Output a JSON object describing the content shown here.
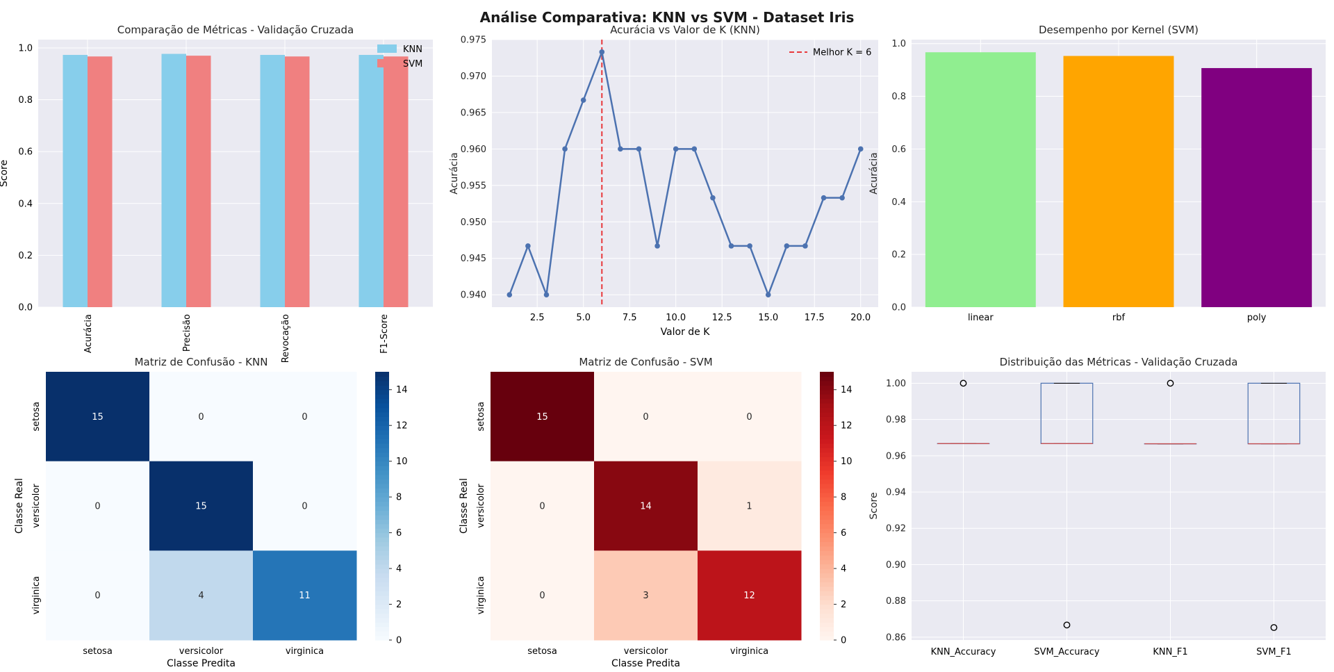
{
  "figure": {
    "title": "Análise Comparativa: KNN vs SVM - Dataset Iris"
  },
  "colors": {
    "knn_bar": "#87CEEB",
    "svm_bar": "#F08080",
    "line": "#4C72B0",
    "best_k_line": "#E8383B",
    "kernel_linear": "#90EE90",
    "kernel_rbf": "#FFA500",
    "kernel_poly": "#800080",
    "box": "#4C72B0",
    "median": "#C44E52",
    "axes_bg": "#EAEAF2"
  },
  "chart_data": [
    {
      "id": "metrics",
      "type": "bar",
      "title": "Comparação de Métricas - Validação Cruzada",
      "xlabel": "",
      "ylabel": "Score",
      "ylim": [
        0,
        1.032
      ],
      "yticks": [
        0.0,
        0.2,
        0.4,
        0.6,
        0.8,
        1.0
      ],
      "categories": [
        "Acurácia",
        "Precisão",
        "Revocação",
        "F1-Score"
      ],
      "series": [
        {
          "name": "KNN",
          "values": [
            0.973,
            0.977,
            0.973,
            0.973
          ]
        },
        {
          "name": "SVM",
          "values": [
            0.967,
            0.97,
            0.967,
            0.967
          ]
        }
      ],
      "legend": "top-right",
      "grid": true
    },
    {
      "id": "k_curve",
      "type": "line",
      "title": "Acurácia vs Valor de K (KNN)",
      "xlabel": "Valor de K",
      "ylabel": "Acurácia",
      "xlim": [
        0.05,
        20.95
      ],
      "ylim": [
        0.9383,
        0.975
      ],
      "xticks": [
        2.5,
        5.0,
        7.5,
        10.0,
        12.5,
        15.0,
        17.5,
        20.0
      ],
      "yticks": [
        0.94,
        0.945,
        0.95,
        0.955,
        0.96,
        0.965,
        0.97,
        0.975
      ],
      "x": [
        1,
        2,
        3,
        4,
        5,
        6,
        7,
        8,
        9,
        10,
        11,
        12,
        13,
        14,
        15,
        16,
        17,
        18,
        19,
        20
      ],
      "y": [
        0.94,
        0.9467,
        0.94,
        0.96,
        0.9667,
        0.9733,
        0.96,
        0.96,
        0.9467,
        0.96,
        0.96,
        0.9533,
        0.9467,
        0.9467,
        0.94,
        0.9467,
        0.9467,
        0.9533,
        0.9533,
        0.96
      ],
      "best_k": 6,
      "legend_label": "Melhor K = 6",
      "legend": "top-right",
      "grid": true
    },
    {
      "id": "kernels",
      "type": "bar",
      "title": "Desempenho por Kernel (SVM)",
      "xlabel": "",
      "ylabel": "Acurácia",
      "ylim": [
        0,
        1.015
      ],
      "yticks": [
        0.0,
        0.2,
        0.4,
        0.6,
        0.8,
        1.0
      ],
      "categories": [
        "linear",
        "rbf",
        "poly"
      ],
      "values": [
        0.967,
        0.953,
        0.907
      ],
      "grid": true
    },
    {
      "id": "cm_knn",
      "type": "heatmap",
      "title": "Matriz de Confusão - KNN",
      "xlabel": "Classe Predita",
      "ylabel": "Classe Real",
      "labels": [
        "setosa",
        "versicolor",
        "virginica"
      ],
      "matrix": [
        [
          15,
          0,
          0
        ],
        [
          0,
          15,
          0
        ],
        [
          0,
          4,
          11
        ]
      ],
      "colormap": "Blues",
      "vmin": 0,
      "vmax": 15,
      "colorbar_ticks": [
        0,
        2,
        4,
        6,
        8,
        10,
        12,
        14
      ]
    },
    {
      "id": "cm_svm",
      "type": "heatmap",
      "title": "Matriz de Confusão - SVM",
      "xlabel": "Classe Predita",
      "ylabel": "Classe Real",
      "labels": [
        "setosa",
        "versicolor",
        "virginica"
      ],
      "matrix": [
        [
          15,
          0,
          0
        ],
        [
          0,
          14,
          1
        ],
        [
          0,
          3,
          12
        ]
      ],
      "colormap": "Reds",
      "vmin": 0,
      "vmax": 15,
      "colorbar_ticks": [
        0,
        2,
        4,
        6,
        8,
        10,
        12,
        14
      ]
    },
    {
      "id": "boxplot",
      "type": "box",
      "title": "Distribuição das Métricas - Validação Cruzada",
      "xlabel": "",
      "ylabel": "Score",
      "ylim": [
        0.8584,
        1.0063
      ],
      "yticks": [
        0.86,
        0.88,
        0.9,
        0.92,
        0.94,
        0.96,
        0.98,
        1.0
      ],
      "categories": [
        "KNN_Accuracy",
        "SVM_Accuracy",
        "KNN_F1",
        "SVM_F1"
      ],
      "boxes": [
        {
          "q1": 0.9667,
          "median": 0.9667,
          "q3": 0.9667,
          "whisker_low": 0.9667,
          "whisker_high": 0.9667,
          "outliers": [
            1.0
          ]
        },
        {
          "q1": 0.9667,
          "median": 0.9667,
          "q3": 1.0,
          "whisker_low": 0.9667,
          "whisker_high": 1.0,
          "outliers": [
            0.8667
          ]
        },
        {
          "q1": 0.9666,
          "median": 0.9666,
          "q3": 0.9666,
          "whisker_low": 0.9666,
          "whisker_high": 0.9666,
          "outliers": [
            1.0
          ]
        },
        {
          "q1": 0.9666,
          "median": 0.9666,
          "q3": 1.0,
          "whisker_low": 0.9666,
          "whisker_high": 1.0,
          "outliers": [
            0.8653
          ]
        }
      ],
      "grid": true
    }
  ]
}
